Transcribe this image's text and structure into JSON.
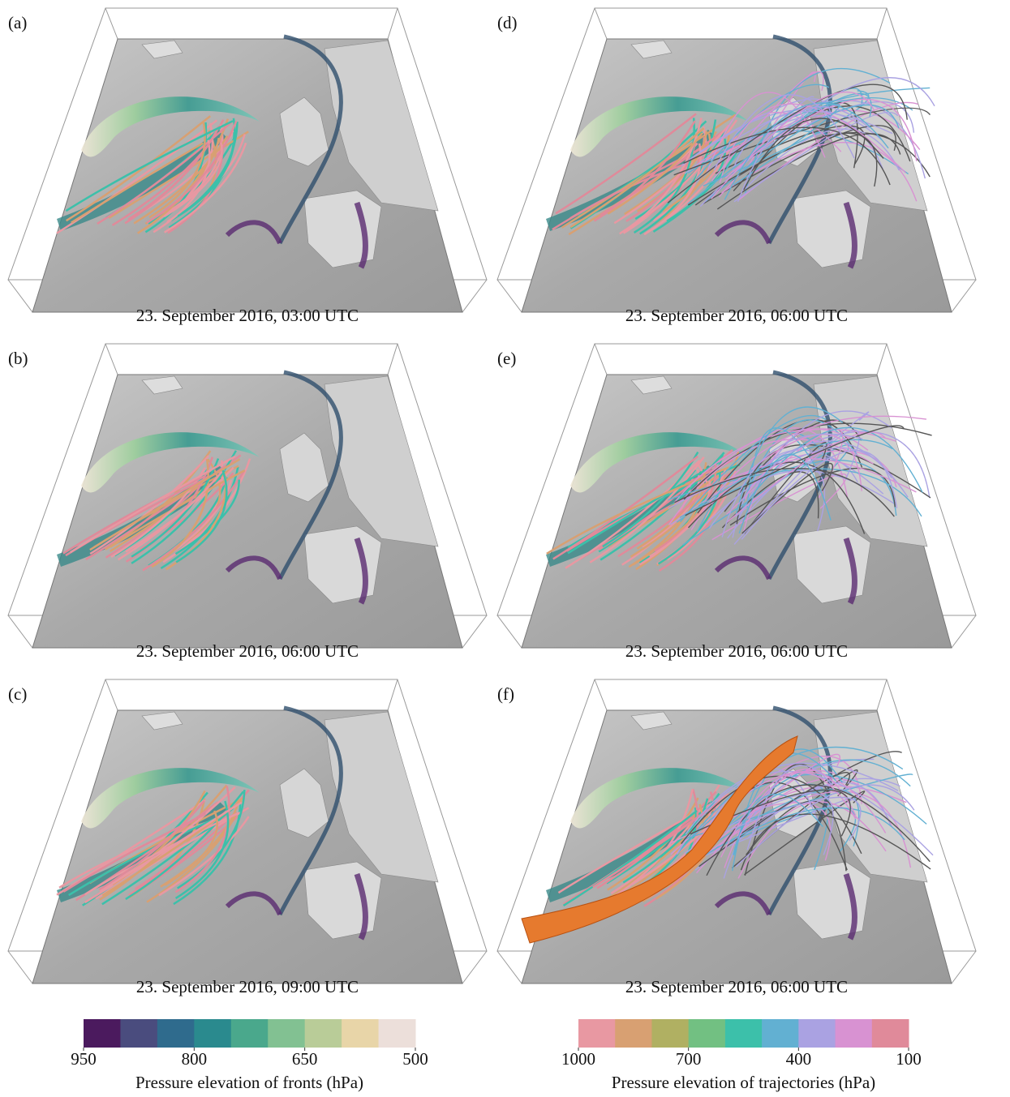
{
  "panels": [
    {
      "label": "(a)",
      "caption": "23. September 2016, 03:00 UTC"
    },
    {
      "label": "(d)",
      "caption": "23. September 2016, 06:00 UTC"
    },
    {
      "label": "(b)",
      "caption": "23. September 2016, 06:00 UTC"
    },
    {
      "label": "(e)",
      "caption": "23. September 2016, 06:00 UTC"
    },
    {
      "label": "(c)",
      "caption": "23. September 2016, 09:00 UTC"
    },
    {
      "label": "(f)",
      "caption": "23. September 2016, 06:00 UTC"
    }
  ],
  "colorbars": [
    {
      "title": "Pressure elevation of fronts (hPa)",
      "range": [
        950,
        500
      ],
      "ticks": [
        950,
        800,
        650,
        500
      ],
      "colors": [
        "#4b1a5e",
        "#4a4c7e",
        "#2f6b8d",
        "#2a8a8e",
        "#4aa88c",
        "#82c192",
        "#b9cc98",
        "#e8d5a8",
        "#ecdfda"
      ]
    },
    {
      "title": "Pressure elevation of trajectories (hPa)",
      "range": [
        1000,
        100
      ],
      "ticks": [
        1000,
        700,
        400,
        100
      ],
      "colors": [
        "#e898a2",
        "#d8a072",
        "#b0b062",
        "#72c082",
        "#3cc0aa",
        "#62b0d2",
        "#aaa2e2",
        "#d892d2",
        "#e08a9a"
      ]
    }
  ]
}
